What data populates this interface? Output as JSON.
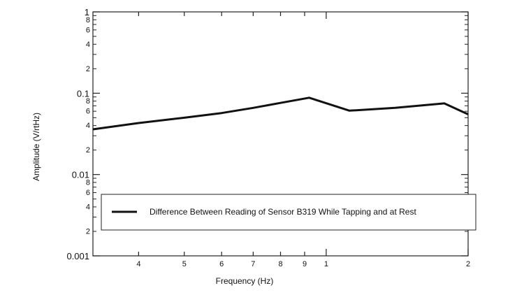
{
  "chart_data": {
    "type": "line",
    "xlabel": "Frequency (Hz)",
    "ylabel": "Amplitude (V/rtHz)",
    "xscale": "log",
    "yscale": "log",
    "xlim": [
      0.32,
      2.0
    ],
    "ylim": [
      0.001,
      1
    ],
    "grid": false,
    "legend_position": "bottom",
    "x_ticks": [
      {
        "value": 0.4,
        "label": "4"
      },
      {
        "value": 0.5,
        "label": "5"
      },
      {
        "value": 0.6,
        "label": "6"
      },
      {
        "value": 0.7,
        "label": "7"
      },
      {
        "value": 0.8,
        "label": "8"
      },
      {
        "value": 0.9,
        "label": "9"
      },
      {
        "value": 1.0,
        "label": "1"
      },
      {
        "value": 2.0,
        "label": "2"
      }
    ],
    "y_major_ticks": [
      {
        "value": 1,
        "label": "1"
      },
      {
        "value": 0.1,
        "label": "0.1"
      },
      {
        "value": 0.01,
        "label": "0.01"
      },
      {
        "value": 0.001,
        "label": "0.001"
      }
    ],
    "y_minor_labels": [
      "8",
      "6",
      "4",
      "2"
    ],
    "series": [
      {
        "name": "Difference Between Reading of Sensor B319 While Tapping and at Rest",
        "color": "#111111",
        "x": [
          0.32,
          0.4,
          0.5,
          0.6,
          0.7,
          0.8,
          0.92,
          1.12,
          1.4,
          1.78,
          2.0
        ],
        "y": [
          0.036,
          0.043,
          0.05,
          0.057,
          0.066,
          0.076,
          0.088,
          0.061,
          0.066,
          0.075,
          0.055
        ]
      }
    ]
  }
}
